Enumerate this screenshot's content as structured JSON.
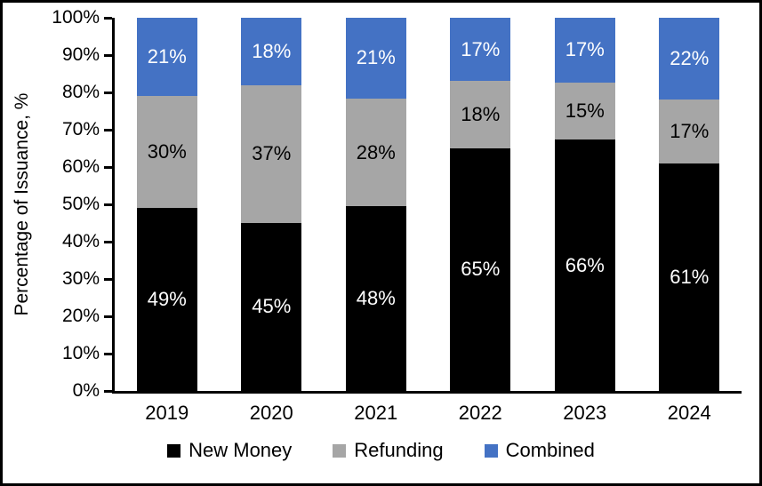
{
  "chart_data": {
    "type": "bar",
    "stacked": true,
    "title": "",
    "xlabel": "",
    "ylabel": "Percentage of Issuance, %",
    "categories": [
      "2019",
      "2020",
      "2021",
      "2022",
      "2023",
      "2024"
    ],
    "series": [
      {
        "name": "New Money",
        "color": "#000000",
        "label_color": "#ffffff",
        "values": [
          49,
          45,
          48,
          65,
          66,
          61
        ]
      },
      {
        "name": "Refunding",
        "color": "#A6A6A6",
        "label_color": "#000000",
        "values": [
          30,
          37,
          28,
          18,
          15,
          17
        ]
      },
      {
        "name": "Combined",
        "color": "#4472C4",
        "label_color": "#ffffff",
        "values": [
          21,
          18,
          21,
          17,
          17,
          22
        ]
      }
    ],
    "value_suffix": "%",
    "ylim": [
      0,
      100
    ],
    "ytick_step": 10,
    "ytick_labels": [
      "0%",
      "10%",
      "20%",
      "30%",
      "40%",
      "50%",
      "60%",
      "70%",
      "80%",
      "90%",
      "100%"
    ],
    "grid": false,
    "legend_position": "bottom",
    "axis_color": "#000000",
    "background": "#ffffff"
  }
}
